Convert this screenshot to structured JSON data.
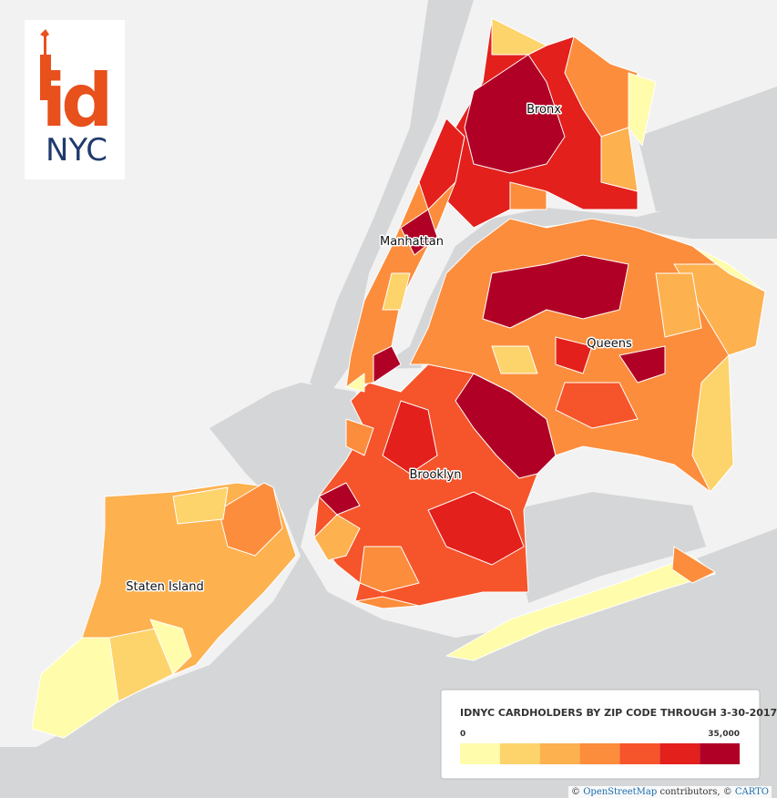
{
  "logo": {
    "mark": "id",
    "city": "NYC"
  },
  "labels": {
    "bronx": "Bronx",
    "manhattan": "Manhattan",
    "queens": "Queens",
    "brooklyn": "Brooklyn",
    "staten_island": "Staten Island"
  },
  "legend": {
    "title": "IDNYC CARDHOLDERS BY ZIP CODE THROUGH 3-30-2017",
    "range": [
      0,
      35000
    ],
    "ticks": [
      0,
      {
        "value": 35000,
        "label": "35,000"
      }
    ],
    "colors": [
      "#fffcab",
      "#fdd36b",
      "#fdb14f",
      "#fc8d3c",
      "#f6542a",
      "#e3201c",
      "#b00026"
    ]
  },
  "attribution": {
    "prefix": "©",
    "osm": "OpenStreetMap",
    "middle": "contributors, ©",
    "carto": "CARTO"
  }
}
